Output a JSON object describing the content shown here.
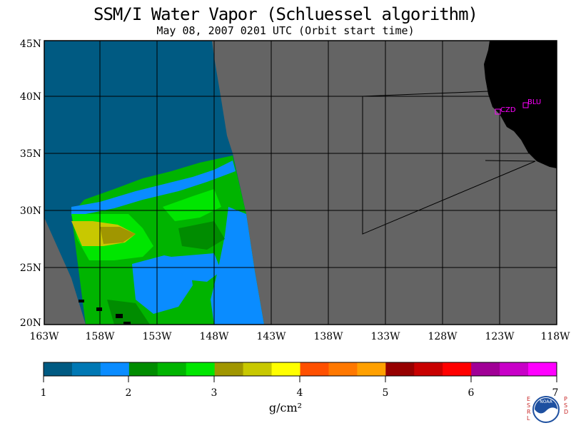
{
  "title": "SSM/I Water Vapor (Schluessel algorithm)",
  "subtitle": "May 08, 2007  0201 UTC  (Orbit start time)",
  "lat_labels": [
    "45N",
    "40N",
    "35N",
    "30N",
    "25N",
    "20N"
  ],
  "lon_labels": [
    "163W",
    "158W",
    "153W",
    "148W",
    "143W",
    "138W",
    "133W",
    "128W",
    "123W",
    "118W"
  ],
  "stations": [
    {
      "name": "CZD",
      "lon": -123.1,
      "lat": 38.6
    },
    {
      "name": "BLU",
      "lon": -120.8,
      "lat": 39.3
    }
  ],
  "colorbar": {
    "labels": [
      "1",
      "2",
      "3",
      "4",
      "5",
      "6",
      "7"
    ],
    "unit": "g/cm²",
    "colors": [
      "#005a82",
      "#0078b4",
      "#0a8cff",
      "#008c00",
      "#00b400",
      "#00e600",
      "#a09600",
      "#c8c800",
      "#ffff00",
      "#ff5000",
      "#ff7800",
      "#ffa000",
      "#960000",
      "#c80000",
      "#ff0000",
      "#a00096",
      "#c800c8",
      "#ff00ff"
    ]
  },
  "logo": {
    "left_text": "ESRL",
    "right_text": "PSD",
    "center_text": "NOAA"
  },
  "colors": {
    "no_data": "#646464",
    "land": "#000000",
    "station": "#ff00ff"
  }
}
